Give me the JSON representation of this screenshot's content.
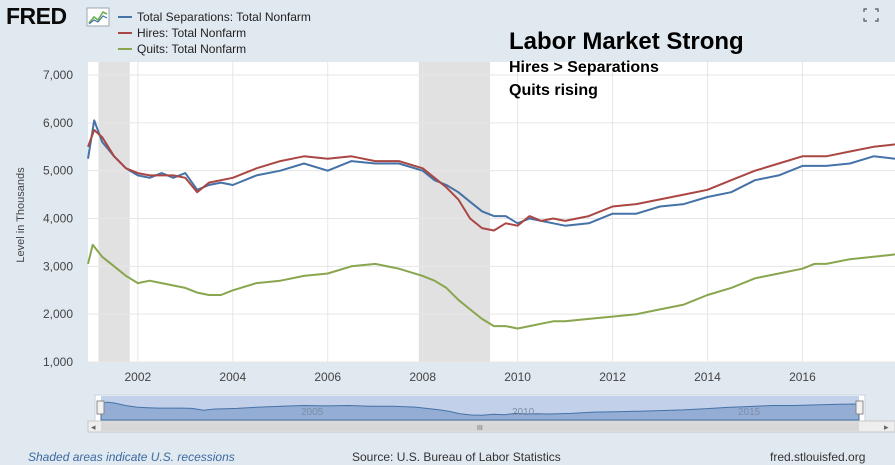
{
  "brand": {
    "logo_text": "FRED"
  },
  "header": {
    "legend": [
      {
        "label": "Total Separations: Total Nonfarm",
        "color": "#4572a7"
      },
      {
        "label": "Hires: Total Nonfarm",
        "color": "#aa4643"
      },
      {
        "label": "Quits: Total Nonfarm",
        "color": "#89a54e"
      }
    ],
    "expand_icon": "expand-icon"
  },
  "annotation": {
    "title": "Labor Market Strong",
    "line1": "Hires > Separations",
    "line2": "Quits rising"
  },
  "footer": {
    "recession_note": "Shaded areas indicate U.S. recessions",
    "source": "Source: U.S. Bureau of Labor Statistics",
    "site": "fred.stlouisfed.org"
  },
  "navigator": {
    "labels": [
      "2005",
      "2010",
      "2015"
    ],
    "left_arrow": "◂",
    "right_arrow": "▸",
    "grip": "III"
  },
  "chart_data": {
    "type": "line",
    "xlabel": "",
    "ylabel": "Level in Thousands",
    "xlim": [
      2000.95,
      2017.95
    ],
    "ylim": [
      1000,
      7000
    ],
    "yticks": [
      1000,
      2000,
      3000,
      4000,
      5000,
      6000,
      7000
    ],
    "ytick_labels": [
      "1,000",
      "2,000",
      "3,000",
      "4,000",
      "5,000",
      "6,000",
      "7,000"
    ],
    "xticks": [
      2002,
      2004,
      2006,
      2008,
      2010,
      2012,
      2014,
      2016
    ],
    "xtick_labels": [
      "2002",
      "2004",
      "2006",
      "2008",
      "2010",
      "2012",
      "2014",
      "2016"
    ],
    "recessions": [
      [
        2001.17,
        2001.83
      ],
      [
        2007.92,
        2009.42
      ]
    ],
    "grid": true,
    "series": [
      {
        "name": "Total Separations: Total Nonfarm",
        "color": "#4572a7",
        "x": [
          2000.95,
          2001.08,
          2001.25,
          2001.5,
          2001.75,
          2002.0,
          2002.25,
          2002.5,
          2002.75,
          2003.0,
          2003.25,
          2003.5,
          2003.75,
          2004.0,
          2004.5,
          2005.0,
          2005.5,
          2006.0,
          2006.5,
          2007.0,
          2007.5,
          2008.0,
          2008.25,
          2008.5,
          2008.75,
          2009.0,
          2009.25,
          2009.5,
          2009.75,
          2010.0,
          2010.25,
          2010.5,
          2010.75,
          2011.0,
          2011.5,
          2012.0,
          2012.5,
          2013.0,
          2013.5,
          2014.0,
          2014.5,
          2015.0,
          2015.5,
          2016.0,
          2016.5,
          2017.0,
          2017.5,
          2017.95
        ],
        "y": [
          5250,
          6050,
          5600,
          5300,
          5050,
          4900,
          4850,
          4950,
          4850,
          4950,
          4600,
          4700,
          4750,
          4700,
          4900,
          5000,
          5150,
          5000,
          5200,
          5150,
          5150,
          5000,
          4800,
          4700,
          4550,
          4350,
          4150,
          4050,
          4050,
          3900,
          4000,
          3950,
          3900,
          3850,
          3900,
          4100,
          4100,
          4250,
          4300,
          4450,
          4550,
          4800,
          4900,
          5100,
          5100,
          5150,
          5300,
          5250
        ]
      },
      {
        "name": "Hires: Total Nonfarm",
        "color": "#aa4643",
        "x": [
          2000.95,
          2001.08,
          2001.25,
          2001.5,
          2001.75,
          2002.0,
          2002.25,
          2002.5,
          2002.75,
          2003.0,
          2003.25,
          2003.5,
          2003.75,
          2004.0,
          2004.5,
          2005.0,
          2005.5,
          2006.0,
          2006.5,
          2007.0,
          2007.5,
          2008.0,
          2008.25,
          2008.5,
          2008.75,
          2009.0,
          2009.25,
          2009.5,
          2009.75,
          2010.0,
          2010.25,
          2010.5,
          2010.75,
          2011.0,
          2011.5,
          2012.0,
          2012.5,
          2013.0,
          2013.5,
          2014.0,
          2014.5,
          2015.0,
          2015.5,
          2016.0,
          2016.5,
          2017.0,
          2017.5,
          2017.95
        ],
        "y": [
          5500,
          5850,
          5700,
          5300,
          5050,
          4950,
          4900,
          4900,
          4900,
          4850,
          4550,
          4750,
          4800,
          4850,
          5050,
          5200,
          5300,
          5250,
          5300,
          5200,
          5200,
          5050,
          4850,
          4650,
          4400,
          4000,
          3800,
          3750,
          3900,
          3850,
          4050,
          3950,
          4000,
          3950,
          4050,
          4250,
          4300,
          4400,
          4500,
          4600,
          4800,
          5000,
          5150,
          5300,
          5300,
          5400,
          5500,
          5550
        ]
      },
      {
        "name": "Quits: Total Nonfarm",
        "color": "#89a54e",
        "x": [
          2000.95,
          2001.05,
          2001.25,
          2001.5,
          2001.75,
          2002.0,
          2002.25,
          2002.5,
          2002.75,
          2003.0,
          2003.25,
          2003.5,
          2003.75,
          2004.0,
          2004.5,
          2005.0,
          2005.5,
          2006.0,
          2006.5,
          2007.0,
          2007.5,
          2008.0,
          2008.25,
          2008.5,
          2008.75,
          2009.0,
          2009.25,
          2009.5,
          2009.75,
          2010.0,
          2010.25,
          2010.5,
          2010.75,
          2011.0,
          2011.5,
          2012.0,
          2012.5,
          2013.0,
          2013.5,
          2014.0,
          2014.5,
          2015.0,
          2015.5,
          2016.0,
          2016.25,
          2016.5,
          2017.0,
          2017.5,
          2017.95
        ],
        "y": [
          3050,
          3450,
          3200,
          3000,
          2800,
          2650,
          2700,
          2650,
          2600,
          2550,
          2450,
          2400,
          2400,
          2500,
          2650,
          2700,
          2800,
          2850,
          3000,
          3050,
          2950,
          2800,
          2700,
          2550,
          2300,
          2100,
          1900,
          1750,
          1750,
          1700,
          1750,
          1800,
          1850,
          1850,
          1900,
          1950,
          2000,
          2100,
          2200,
          2400,
          2550,
          2750,
          2850,
          2950,
          3050,
          3050,
          3150,
          3200,
          3250
        ]
      }
    ]
  }
}
